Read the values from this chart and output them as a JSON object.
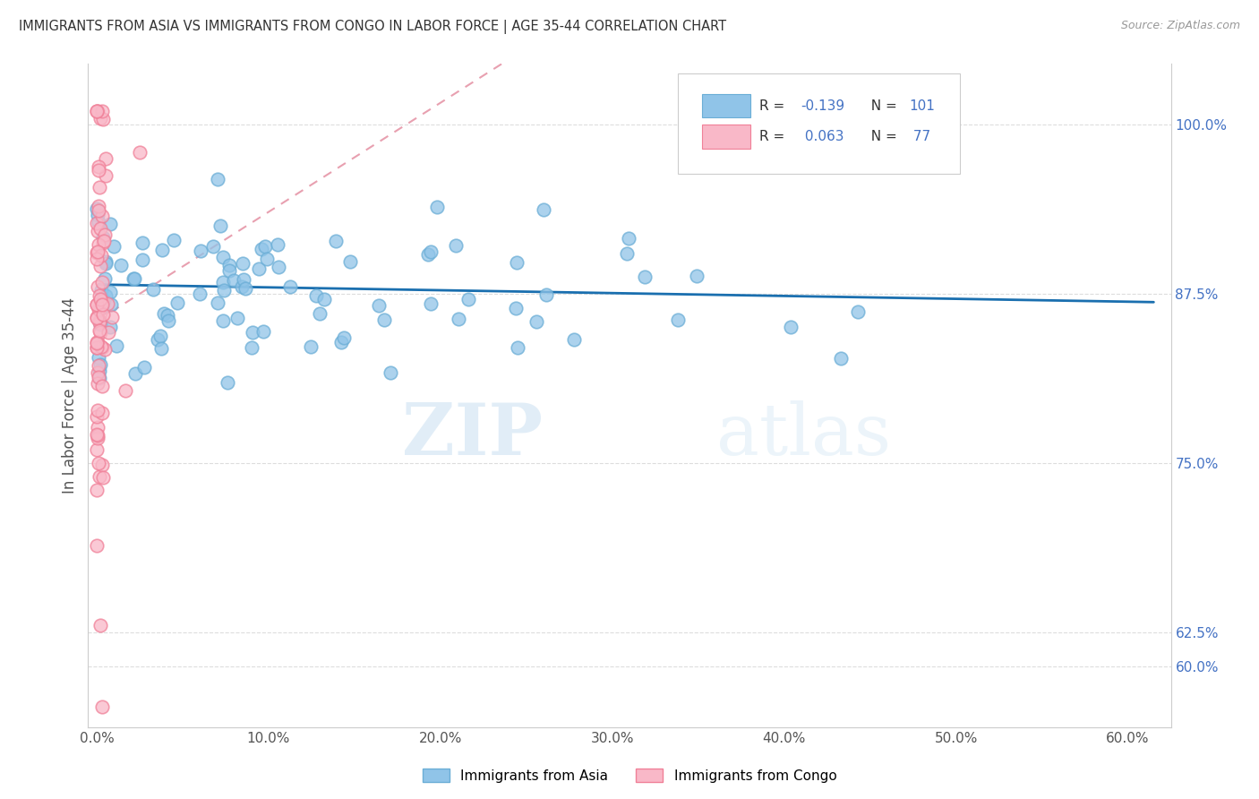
{
  "title": "IMMIGRANTS FROM ASIA VS IMMIGRANTS FROM CONGO IN LABOR FORCE | AGE 35-44 CORRELATION CHART",
  "source": "Source: ZipAtlas.com",
  "xlabel_ticks": [
    "0.0%",
    "10.0%",
    "20.0%",
    "30.0%",
    "40.0%",
    "50.0%",
    "60.0%"
  ],
  "xlabel_vals": [
    0.0,
    0.1,
    0.2,
    0.3,
    0.4,
    0.5,
    0.6
  ],
  "ylabel": "In Labor Force | Age 35-44",
  "ylabel_ticks": [
    "60.0%",
    "62.5%",
    "75.0%",
    "87.5%",
    "100.0%"
  ],
  "ylabel_vals": [
    0.6,
    0.625,
    0.75,
    0.875,
    1.0
  ],
  "xlim": [
    -0.005,
    0.625
  ],
  "ylim": [
    0.555,
    1.045
  ],
  "watermark_zip": "ZIP",
  "watermark_atlas": "atlas",
  "legend_label1": "Immigrants from Asia",
  "legend_label2": "Immigrants from Congo",
  "R_asia": -0.139,
  "N_asia": 101,
  "R_congo": 0.063,
  "N_congo": 77,
  "color_asia": "#90c4e8",
  "color_asia_edge": "#6baed6",
  "color_congo": "#f9b8c8",
  "color_congo_edge": "#f08098",
  "trendline_asia_color": "#1a6faf",
  "trendline_congo_color": "#e8a0b0",
  "background_color": "#ffffff",
  "grid_color": "#dddddd",
  "title_color": "#333333",
  "axis_label_color": "#555555",
  "right_tick_color": "#4472c4",
  "legend_R_color": "#4472c4",
  "legend_N_color": "#4472c4"
}
